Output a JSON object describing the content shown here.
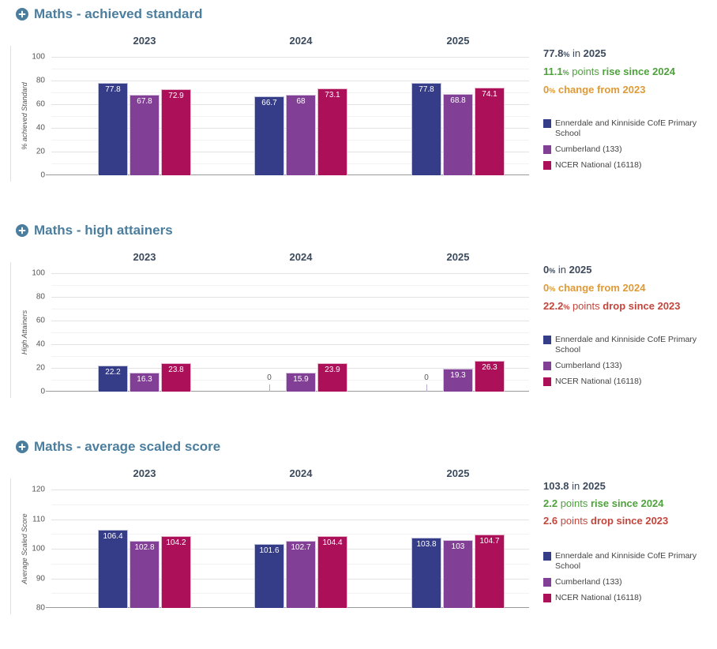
{
  "colors": {
    "title": "#4b7e9e",
    "year_header": "#3b4a5c",
    "dark": "#3d4a5c",
    "green": "#4ea13c",
    "orange": "#df9a35",
    "red": "#c2463c",
    "axis_text": "#555555",
    "grid_major": "#e3e3e3",
    "grid_minor": "#f2f2f2",
    "axis_line": "#9a9a9a"
  },
  "legend": [
    {
      "label": "Ennerdale and Kinniside CofE Primary School",
      "color": "#353c88"
    },
    {
      "label": "Cumberland (133)",
      "color": "#813f95"
    },
    {
      "label": "NCER National (16118)",
      "color": "#ac1059"
    }
  ],
  "chart_data": [
    {
      "type": "bar",
      "title": "Maths - achieved standard",
      "ylabel": "% achieved Standard",
      "ylim": [
        0,
        100
      ],
      "ticks": [
        0,
        20,
        40,
        60,
        80,
        100
      ],
      "minor_step": 10,
      "grid": true,
      "legend_position": "right",
      "categories": [
        "2023",
        "2024",
        "2025"
      ],
      "series": [
        {
          "name": "Ennerdale and Kinniside CofE Primary School",
          "values": [
            77.8,
            66.7,
            77.8
          ]
        },
        {
          "name": "Cumberland (133)",
          "values": [
            67.8,
            68,
            68.8
          ]
        },
        {
          "name": "NCER National (16118)",
          "values": [
            72.9,
            73.1,
            74.1
          ]
        }
      ],
      "summary": [
        {
          "color": "dark",
          "segments": [
            {
              "text": "77.8",
              "bold": true
            },
            {
              "text": "%",
              "bold": true,
              "pct": true
            },
            {
              "text": " in ",
              "bold": false
            },
            {
              "text": "2025",
              "bold": true
            }
          ]
        },
        {
          "color": "green",
          "segments": [
            {
              "text": "11.1",
              "bold": true
            },
            {
              "text": "%",
              "bold": true,
              "pct": true
            },
            {
              "text": " points ",
              "bold": false
            },
            {
              "text": "rise since 2024",
              "bold": true
            }
          ]
        },
        {
          "color": "orange",
          "segments": [
            {
              "text": "0",
              "bold": true
            },
            {
              "text": "%",
              "bold": true,
              "pct": true
            },
            {
              "text": " ",
              "bold": false
            },
            {
              "text": "change from 2023",
              "bold": true
            }
          ]
        }
      ]
    },
    {
      "type": "bar",
      "title": "Maths - high attainers",
      "ylabel": "High Attainers",
      "ylim": [
        0,
        100
      ],
      "ticks": [
        0,
        20,
        40,
        60,
        80,
        100
      ],
      "minor_step": 10,
      "grid": true,
      "legend_position": "right",
      "categories": [
        "2023",
        "2024",
        "2025"
      ],
      "series": [
        {
          "name": "Ennerdale and Kinniside CofE Primary School",
          "values": [
            22.2,
            0,
            0
          ]
        },
        {
          "name": "Cumberland (133)",
          "values": [
            16.3,
            15.9,
            19.3
          ]
        },
        {
          "name": "NCER National (16118)",
          "values": [
            23.8,
            23.9,
            26.3
          ]
        }
      ],
      "summary": [
        {
          "color": "dark",
          "segments": [
            {
              "text": "0",
              "bold": true
            },
            {
              "text": "%",
              "bold": true,
              "pct": true
            },
            {
              "text": " in ",
              "bold": false
            },
            {
              "text": "2025",
              "bold": true
            }
          ]
        },
        {
          "color": "orange",
          "segments": [
            {
              "text": "0",
              "bold": true
            },
            {
              "text": "%",
              "bold": true,
              "pct": true
            },
            {
              "text": " ",
              "bold": false
            },
            {
              "text": "change from 2024",
              "bold": true
            }
          ]
        },
        {
          "color": "red",
          "segments": [
            {
              "text": "22.2",
              "bold": true
            },
            {
              "text": "%",
              "bold": true,
              "pct": true
            },
            {
              "text": " points ",
              "bold": false
            },
            {
              "text": "drop since 2023",
              "bold": true
            }
          ]
        }
      ]
    },
    {
      "type": "bar",
      "title": "Maths - average scaled score",
      "ylabel": "Average Scaled Score",
      "ylim": [
        80,
        120
      ],
      "ticks": [
        80,
        90,
        100,
        110,
        120
      ],
      "minor_step": 5,
      "grid": true,
      "legend_position": "right",
      "categories": [
        "2023",
        "2024",
        "2025"
      ],
      "series": [
        {
          "name": "Ennerdale and Kinniside CofE Primary School",
          "values": [
            106.4,
            101.6,
            103.8
          ]
        },
        {
          "name": "Cumberland (133)",
          "values": [
            102.8,
            102.7,
            103
          ]
        },
        {
          "name": "NCER National (16118)",
          "values": [
            104.2,
            104.4,
            104.7
          ]
        }
      ],
      "summary": [
        {
          "color": "dark",
          "segments": [
            {
              "text": "103.8",
              "bold": true
            },
            {
              "text": " in ",
              "bold": false
            },
            {
              "text": "2025",
              "bold": true
            }
          ]
        },
        {
          "color": "green",
          "segments": [
            {
              "text": "2.2",
              "bold": true
            },
            {
              "text": " points ",
              "bold": false
            },
            {
              "text": "rise since 2024",
              "bold": true
            }
          ]
        },
        {
          "color": "red",
          "segments": [
            {
              "text": "2.6",
              "bold": true
            },
            {
              "text": " points ",
              "bold": false
            },
            {
              "text": "drop since 2023",
              "bold": true
            }
          ]
        }
      ]
    }
  ]
}
